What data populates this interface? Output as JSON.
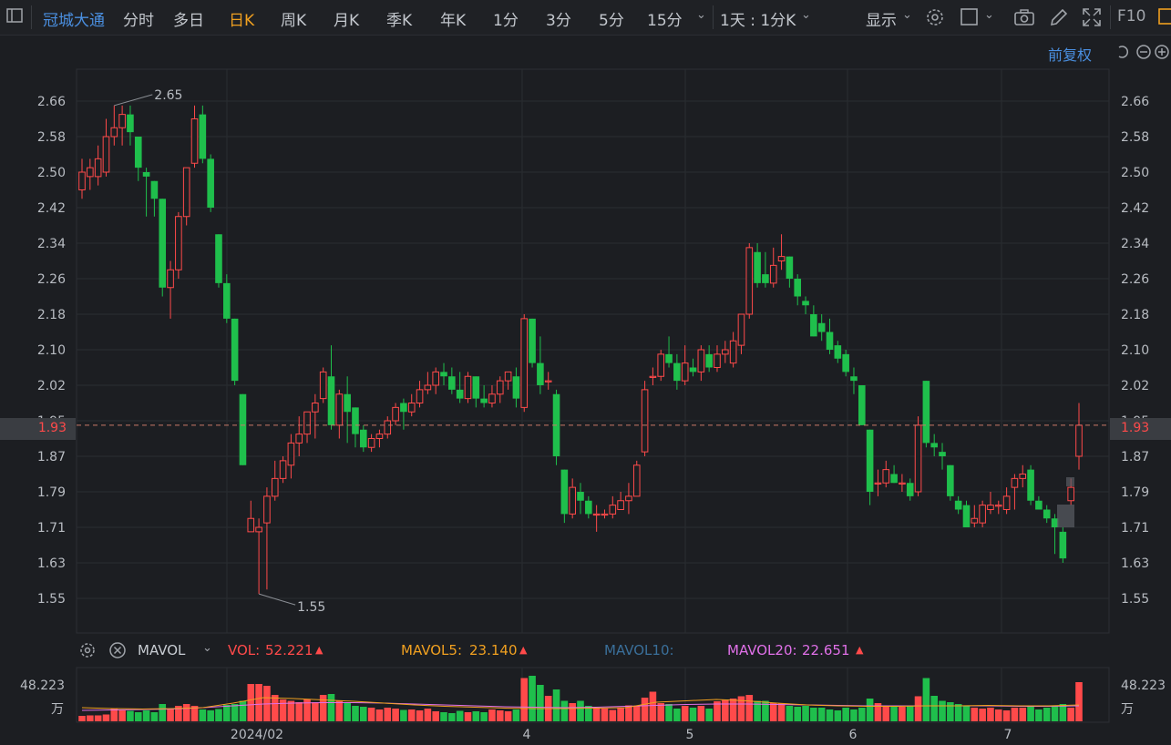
{
  "toolbar": {
    "stock_name": "冠城大通",
    "periods": [
      "分时",
      "多日",
      "日K",
      "周K",
      "月K",
      "季K",
      "年K",
      "1分",
      "3分",
      "5分",
      "15分"
    ],
    "active_period": "日K",
    "interval_select": "1天 : 1分K",
    "display_label": "显示",
    "f10_label": "F10",
    "adjust_label": "前复权"
  },
  "price_axis": {
    "ticks": [
      "2.66",
      "2.58",
      "2.50",
      "2.42",
      "2.34",
      "2.26",
      "2.18",
      "2.10",
      "2.02",
      "1.95",
      "1.87",
      "1.79",
      "1.71",
      "1.63",
      "1.55"
    ],
    "current_price": "1.93",
    "high_label": "2.65",
    "low_label": "1.55"
  },
  "indicator": {
    "name": "MAVOL",
    "vol_label": "VOL:",
    "vol_value": "52.221",
    "mavol5_label": "MAVOL5:",
    "mavol5_value": "23.140",
    "mavol10_label": "MAVOL10:",
    "mavol20_label": "MAVOL20:",
    "mavol20_value": "22.651",
    "vol_axis_value": "48.223",
    "vol_axis_unit": "万"
  },
  "time_axis": [
    "2024/02",
    "4",
    "5",
    "6",
    "7"
  ],
  "colors": {
    "up": "#ff4a4a",
    "down": "#1fbf4c",
    "accent": "#f0a020",
    "link": "#4a8fe0",
    "mavol5": "#f0a020",
    "mavol10": "#3a6f9a",
    "mavol20": "#e070e8"
  },
  "chart_data": {
    "type": "candlestick",
    "ylim": [
      1.51,
      2.7
    ],
    "candles": [
      [
        2.46,
        2.5,
        2.53,
        2.44
      ],
      [
        2.49,
        2.51,
        2.53,
        2.46
      ],
      [
        2.49,
        2.53,
        2.56,
        2.47
      ],
      [
        2.5,
        2.58,
        2.62,
        2.49
      ],
      [
        2.58,
        2.6,
        2.65,
        2.56
      ],
      [
        2.6,
        2.63,
        2.65,
        2.56
      ],
      [
        2.63,
        2.59,
        2.65,
        2.56
      ],
      [
        2.58,
        2.51,
        2.58,
        2.48
      ],
      [
        2.5,
        2.49,
        2.51,
        2.4
      ],
      [
        2.48,
        2.44,
        2.48,
        2.4
      ],
      [
        2.44,
        2.24,
        2.44,
        2.22
      ],
      [
        2.24,
        2.28,
        2.3,
        2.17
      ],
      [
        2.28,
        2.4,
        2.41,
        2.26
      ],
      [
        2.4,
        2.51,
        2.51,
        2.38
      ],
      [
        2.52,
        2.62,
        2.65,
        2.51
      ],
      [
        2.63,
        2.53,
        2.65,
        2.52
      ],
      [
        2.53,
        2.42,
        2.54,
        2.41
      ],
      [
        2.36,
        2.25,
        2.36,
        2.24
      ],
      [
        2.25,
        2.17,
        2.27,
        2.16
      ],
      [
        2.17,
        2.03,
        2.17,
        2.02
      ],
      [
        2.0,
        1.84,
        2.0,
        1.84
      ],
      [
        1.69,
        1.72,
        1.76,
        1.69
      ],
      [
        1.69,
        1.7,
        1.72,
        1.55
      ],
      [
        1.71,
        1.77,
        1.79,
        1.56
      ],
      [
        1.77,
        1.81,
        1.85,
        1.76
      ],
      [
        1.81,
        1.85,
        1.86,
        1.8
      ],
      [
        1.84,
        1.89,
        1.91,
        1.81
      ],
      [
        1.89,
        1.91,
        1.95,
        1.86
      ],
      [
        1.91,
        1.96,
        1.96,
        1.89
      ],
      [
        1.96,
        1.98,
        2.0,
        1.9
      ],
      [
        1.99,
        2.05,
        2.06,
        1.98
      ],
      [
        2.04,
        1.93,
        2.11,
        1.92
      ],
      [
        1.93,
        2.0,
        2.01,
        1.9
      ],
      [
        2.0,
        1.96,
        2.04,
        1.89
      ],
      [
        1.97,
        1.91,
        1.97,
        1.88
      ],
      [
        1.92,
        1.88,
        1.93,
        1.87
      ],
      [
        1.88,
        1.9,
        1.91,
        1.87
      ],
      [
        1.9,
        1.91,
        1.92,
        1.88
      ],
      [
        1.91,
        1.94,
        1.95,
        1.9
      ],
      [
        1.94,
        1.97,
        1.98,
        1.93
      ],
      [
        1.98,
        1.96,
        1.99,
        1.92
      ],
      [
        1.96,
        1.98,
        2.0,
        1.95
      ],
      [
        1.98,
        2.01,
        2.03,
        1.97
      ],
      [
        2.01,
        2.02,
        2.05,
        2.0
      ],
      [
        2.02,
        2.05,
        2.06,
        2.0
      ],
      [
        2.05,
        2.04,
        2.07,
        2.02
      ],
      [
        2.04,
        2.01,
        2.06,
        2.0
      ],
      [
        2.01,
        1.99,
        2.05,
        1.98
      ],
      [
        1.99,
        2.04,
        2.05,
        1.98
      ],
      [
        2.04,
        1.99,
        2.04,
        1.97
      ],
      [
        1.99,
        1.98,
        2.02,
        1.97
      ],
      [
        1.98,
        2.0,
        2.02,
        1.97
      ],
      [
        2.0,
        2.03,
        2.04,
        1.98
      ],
      [
        2.03,
        2.05,
        2.05,
        2.01
      ],
      [
        2.04,
        1.99,
        2.06,
        1.97
      ],
      [
        1.97,
        2.17,
        2.18,
        1.96
      ],
      [
        2.17,
        2.07,
        2.17,
        2.06
      ],
      [
        2.07,
        2.02,
        2.13,
        2.0
      ],
      [
        2.03,
        2.03,
        2.05,
        2.01
      ],
      [
        2.0,
        1.86,
        2.01,
        1.84
      ],
      [
        1.83,
        1.73,
        1.83,
        1.71
      ],
      [
        1.73,
        1.79,
        1.81,
        1.72
      ],
      [
        1.78,
        1.76,
        1.8,
        1.73
      ],
      [
        1.76,
        1.73,
        1.77,
        1.72
      ],
      [
        1.73,
        1.73,
        1.75,
        1.69
      ],
      [
        1.73,
        1.73,
        1.74,
        1.72
      ],
      [
        1.73,
        1.75,
        1.77,
        1.72
      ],
      [
        1.74,
        1.76,
        1.78,
        1.74
      ],
      [
        1.76,
        1.77,
        1.8,
        1.73
      ],
      [
        1.77,
        1.84,
        1.85,
        1.77
      ],
      [
        1.87,
        2.01,
        2.03,
        1.86
      ],
      [
        2.04,
        2.04,
        2.06,
        2.02
      ],
      [
        2.04,
        2.09,
        2.1,
        2.03
      ],
      [
        2.09,
        2.07,
        2.13,
        2.06
      ],
      [
        2.07,
        2.03,
        2.09,
        2.01
      ],
      [
        2.03,
        2.07,
        2.11,
        2.02
      ],
      [
        2.06,
        2.05,
        2.08,
        2.04
      ],
      [
        2.05,
        2.1,
        2.11,
        2.03
      ],
      [
        2.09,
        2.06,
        2.11,
        2.05
      ],
      [
        2.06,
        2.09,
        2.11,
        2.05
      ],
      [
        2.09,
        2.1,
        2.12,
        2.07
      ],
      [
        2.07,
        2.12,
        2.14,
        2.06
      ],
      [
        2.11,
        2.18,
        2.18,
        2.09
      ],
      [
        2.18,
        2.33,
        2.34,
        2.17
      ],
      [
        2.32,
        2.25,
        2.34,
        2.24
      ],
      [
        2.27,
        2.25,
        2.32,
        2.24
      ],
      [
        2.25,
        2.29,
        2.33,
        2.24
      ],
      [
        2.3,
        2.31,
        2.36,
        2.28
      ],
      [
        2.31,
        2.26,
        2.31,
        2.24
      ],
      [
        2.26,
        2.22,
        2.27,
        2.2
      ],
      [
        2.21,
        2.2,
        2.22,
        2.18
      ],
      [
        2.18,
        2.13,
        2.2,
        2.13
      ],
      [
        2.16,
        2.14,
        2.18,
        2.12
      ],
      [
        2.14,
        2.1,
        2.17,
        2.09
      ],
      [
        2.11,
        2.08,
        2.12,
        2.07
      ],
      [
        2.09,
        2.05,
        2.1,
        2.04
      ],
      [
        2.04,
        2.03,
        2.06,
        2.0
      ],
      [
        2.02,
        1.93,
        2.02,
        1.93
      ],
      [
        1.92,
        1.78,
        1.92,
        1.75
      ],
      [
        1.8,
        1.8,
        1.83,
        1.77
      ],
      [
        1.8,
        1.83,
        1.85,
        1.79
      ],
      [
        1.82,
        1.8,
        1.84,
        1.8
      ],
      [
        1.8,
        1.8,
        1.82,
        1.78
      ],
      [
        1.8,
        1.77,
        1.81,
        1.76
      ],
      [
        1.78,
        1.93,
        1.95,
        1.77
      ],
      [
        2.03,
        1.89,
        2.03,
        1.88
      ],
      [
        1.89,
        1.88,
        1.91,
        1.86
      ],
      [
        1.87,
        1.86,
        1.89,
        1.83
      ],
      [
        1.84,
        1.77,
        1.84,
        1.76
      ],
      [
        1.76,
        1.74,
        1.77,
        1.73
      ],
      [
        1.75,
        1.7,
        1.76,
        1.7
      ],
      [
        1.71,
        1.72,
        1.75,
        1.7
      ],
      [
        1.71,
        1.75,
        1.76,
        1.7
      ],
      [
        1.74,
        1.75,
        1.78,
        1.73
      ],
      [
        1.75,
        1.75,
        1.76,
        1.73
      ],
      [
        1.74,
        1.77,
        1.79,
        1.73
      ],
      [
        1.79,
        1.81,
        1.82,
        1.74
      ],
      [
        1.81,
        1.82,
        1.84,
        1.79
      ],
      [
        1.83,
        1.76,
        1.84,
        1.75
      ],
      [
        1.76,
        1.74,
        1.77,
        1.74
      ],
      [
        1.74,
        1.72,
        1.75,
        1.71
      ],
      [
        1.72,
        1.7,
        1.73,
        1.64
      ],
      [
        1.69,
        1.63,
        1.7,
        1.62
      ],
      [
        1.76,
        1.79,
        1.81,
        1.75
      ],
      [
        1.86,
        1.93,
        1.98,
        1.83
      ]
    ],
    "volumes": [
      0.12,
      0.13,
      0.13,
      0.15,
      0.28,
      0.24,
      0.23,
      0.2,
      0.24,
      0.2,
      0.38,
      0.28,
      0.34,
      0.38,
      0.34,
      0.26,
      0.24,
      0.27,
      0.36,
      0.38,
      0.45,
      0.82,
      0.82,
      0.78,
      0.58,
      0.48,
      0.45,
      0.42,
      0.48,
      0.42,
      0.58,
      0.6,
      0.45,
      0.4,
      0.34,
      0.32,
      0.3,
      0.26,
      0.3,
      0.28,
      0.25,
      0.26,
      0.24,
      0.28,
      0.22,
      0.2,
      0.18,
      0.23,
      0.2,
      0.22,
      0.2,
      0.26,
      0.24,
      0.22,
      0.26,
      0.95,
      1.0,
      0.8,
      0.56,
      0.7,
      0.45,
      0.4,
      0.45,
      0.34,
      0.3,
      0.28,
      0.25,
      0.3,
      0.35,
      0.34,
      0.52,
      0.65,
      0.4,
      0.38,
      0.28,
      0.34,
      0.3,
      0.34,
      0.28,
      0.44,
      0.48,
      0.5,
      0.55,
      0.58,
      0.45,
      0.45,
      0.4,
      0.4,
      0.34,
      0.32,
      0.34,
      0.3,
      0.3,
      0.26,
      0.24,
      0.3,
      0.26,
      0.3,
      0.5,
      0.4,
      0.32,
      0.34,
      0.32,
      0.34,
      0.55,
      0.95,
      0.56,
      0.45,
      0.42,
      0.38,
      0.34,
      0.3,
      0.28,
      0.3,
      0.26,
      0.24,
      0.3,
      0.3,
      0.34,
      0.26,
      0.3,
      0.34,
      0.38,
      0.3,
      0.86
    ],
    "mavol5": [
      0.3,
      0.28,
      0.27,
      0.28,
      0.3,
      0.4,
      0.52,
      0.5,
      0.47,
      0.44,
      0.4,
      0.36,
      0.33,
      0.31,
      0.29,
      0.28,
      0.28,
      0.29,
      0.3,
      0.42,
      0.45,
      0.48,
      0.45,
      0.4,
      0.36,
      0.34,
      0.33,
      0.33,
      0.34,
      0.34,
      0.35,
      0.34,
      0.34,
      0.36
    ],
    "mavol20": [
      0.24,
      0.25,
      0.26,
      0.27,
      0.3,
      0.34,
      0.38,
      0.4,
      0.41,
      0.41,
      0.4,
      0.38,
      0.36,
      0.34,
      0.32,
      0.31,
      0.3,
      0.31,
      0.33,
      0.35,
      0.37,
      0.38,
      0.38,
      0.37,
      0.36,
      0.35,
      0.34,
      0.34,
      0.34,
      0.34,
      0.34,
      0.33,
      0.33,
      0.34
    ]
  }
}
